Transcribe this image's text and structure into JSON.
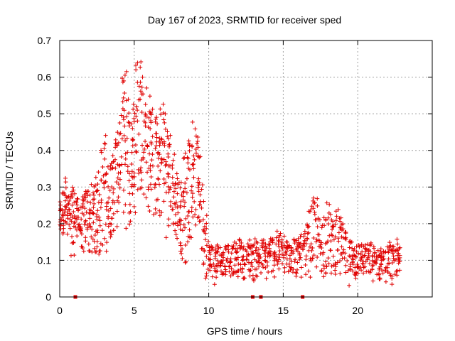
{
  "chart_data": {
    "type": "scatter",
    "title": "Day 167 of 2023, SRMTID for receiver sped",
    "xlabel": "GPS time / hours",
    "ylabel": "SRMTID / TECUs",
    "xlim": [
      0,
      25
    ],
    "ylim": [
      0,
      0.7
    ],
    "grid": true,
    "marker_color": "#e00000",
    "x_ticks": [
      {
        "value": 0,
        "label": "0"
      },
      {
        "value": 5,
        "label": "5"
      },
      {
        "value": 10,
        "label": "10"
      },
      {
        "value": 15,
        "label": "15"
      },
      {
        "value": 20,
        "label": "20"
      }
    ],
    "y_ticks": [
      {
        "value": 0,
        "label": "0"
      },
      {
        "value": 0.1,
        "label": "0.1"
      },
      {
        "value": 0.2,
        "label": "0.2"
      },
      {
        "value": 0.3,
        "label": "0.3"
      },
      {
        "value": 0.4,
        "label": "0.4"
      },
      {
        "value": 0.5,
        "label": "0.5"
      },
      {
        "value": 0.6,
        "label": "0.6"
      },
      {
        "value": 0.7,
        "label": "0.7"
      }
    ],
    "series": [
      {
        "name": "SRMTID",
        "marker": "plus",
        "x": [
          0.0,
          0.2,
          0.4,
          0.6,
          0.8,
          1.0,
          1.2,
          1.4,
          1.6,
          1.8,
          2.0,
          2.2,
          2.4,
          2.6,
          2.8,
          3.0,
          3.2,
          3.4,
          3.6,
          3.8,
          4.0,
          4.2,
          4.4,
          4.6,
          4.8,
          5.0,
          5.2,
          5.4,
          5.6,
          5.8,
          6.0,
          6.2,
          6.4,
          6.6,
          6.8,
          7.0,
          7.2,
          7.4,
          7.6,
          7.8,
          8.0,
          8.2,
          8.4,
          8.6,
          8.8,
          9.0,
          9.2,
          9.4,
          9.6,
          9.8,
          10.0,
          10.2,
          10.4,
          10.6,
          10.8,
          11.0,
          11.2,
          11.4,
          11.6,
          11.8,
          12.0,
          12.2,
          12.4,
          12.6,
          12.8,
          13.0,
          13.2,
          13.4,
          13.6,
          13.8,
          14.0,
          14.2,
          14.4,
          14.6,
          14.8,
          15.0,
          15.2,
          15.4,
          15.6,
          15.8,
          16.0,
          16.2,
          16.4,
          16.6,
          16.8,
          17.0,
          17.2,
          17.4,
          17.6,
          17.8,
          18.0,
          18.2,
          18.4,
          18.6,
          18.8,
          19.0,
          19.2,
          19.4,
          19.6,
          19.8,
          20.0,
          20.2,
          20.4,
          20.6,
          20.8,
          21.0,
          21.2,
          21.4,
          21.6,
          21.8,
          22.0,
          22.2,
          22.4,
          22.6,
          22.8
        ],
        "upper": [
          0.26,
          0.3,
          0.33,
          0.28,
          0.3,
          0.31,
          0.27,
          0.25,
          0.28,
          0.3,
          0.29,
          0.31,
          0.33,
          0.36,
          0.41,
          0.45,
          0.37,
          0.4,
          0.39,
          0.45,
          0.52,
          0.6,
          0.65,
          0.55,
          0.5,
          0.57,
          0.66,
          0.68,
          0.63,
          0.6,
          0.56,
          0.53,
          0.5,
          0.48,
          0.52,
          0.54,
          0.5,
          0.45,
          0.4,
          0.36,
          0.33,
          0.32,
          0.4,
          0.44,
          0.47,
          0.49,
          0.44,
          0.39,
          0.33,
          0.24,
          0.16,
          0.15,
          0.14,
          0.15,
          0.14,
          0.13,
          0.15,
          0.15,
          0.14,
          0.15,
          0.16,
          0.15,
          0.14,
          0.15,
          0.16,
          0.15,
          0.16,
          0.15,
          0.16,
          0.15,
          0.16,
          0.17,
          0.17,
          0.18,
          0.18,
          0.17,
          0.16,
          0.18,
          0.17,
          0.17,
          0.16,
          0.17,
          0.18,
          0.2,
          0.24,
          0.27,
          0.28,
          0.22,
          0.21,
          0.25,
          0.26,
          0.23,
          0.22,
          0.24,
          0.22,
          0.2,
          0.18,
          0.17,
          0.16,
          0.15,
          0.15,
          0.15,
          0.14,
          0.15,
          0.15,
          0.14,
          0.13,
          0.13,
          0.14,
          0.13,
          0.14,
          0.15,
          0.14,
          0.16,
          0.14
        ],
        "lower": [
          0.17,
          0.15,
          0.2,
          0.12,
          0.11,
          0.11,
          0.14,
          0.13,
          0.1,
          0.14,
          0.09,
          0.12,
          0.1,
          0.08,
          0.1,
          0.14,
          0.12,
          0.16,
          0.17,
          0.18,
          0.2,
          0.22,
          0.13,
          0.16,
          0.19,
          0.22,
          0.25,
          0.27,
          0.28,
          0.24,
          0.22,
          0.26,
          0.2,
          0.19,
          0.2,
          0.22,
          0.16,
          0.15,
          0.17,
          0.14,
          0.12,
          0.1,
          0.09,
          0.13,
          0.15,
          0.2,
          0.18,
          0.17,
          0.06,
          0.05,
          0.04,
          0.05,
          0.02,
          0.05,
          0.06,
          0.05,
          0.06,
          0.05,
          0.06,
          0.05,
          0.05,
          0.06,
          0.05,
          0.06,
          0.05,
          0.04,
          0.05,
          0.06,
          0.05,
          0.04,
          0.05,
          0.06,
          0.05,
          0.06,
          0.04,
          0.05,
          0.06,
          0.05,
          0.06,
          0.05,
          0.06,
          0.05,
          0.05,
          0.06,
          0.05,
          0.07,
          0.06,
          0.05,
          0.06,
          0.05,
          0.06,
          0.05,
          0.06,
          0.05,
          0.04,
          0.05,
          0.04,
          0.03,
          0.05,
          0.04,
          0.05,
          0.06,
          0.05,
          0.04,
          0.05,
          0.04,
          0.05,
          0.04,
          0.05,
          0.04,
          0.05,
          0.03,
          0.04,
          0.05,
          0.04
        ],
        "zero_points_x": [
          1.05,
          12.95,
          13.5,
          16.3
        ]
      }
    ]
  }
}
